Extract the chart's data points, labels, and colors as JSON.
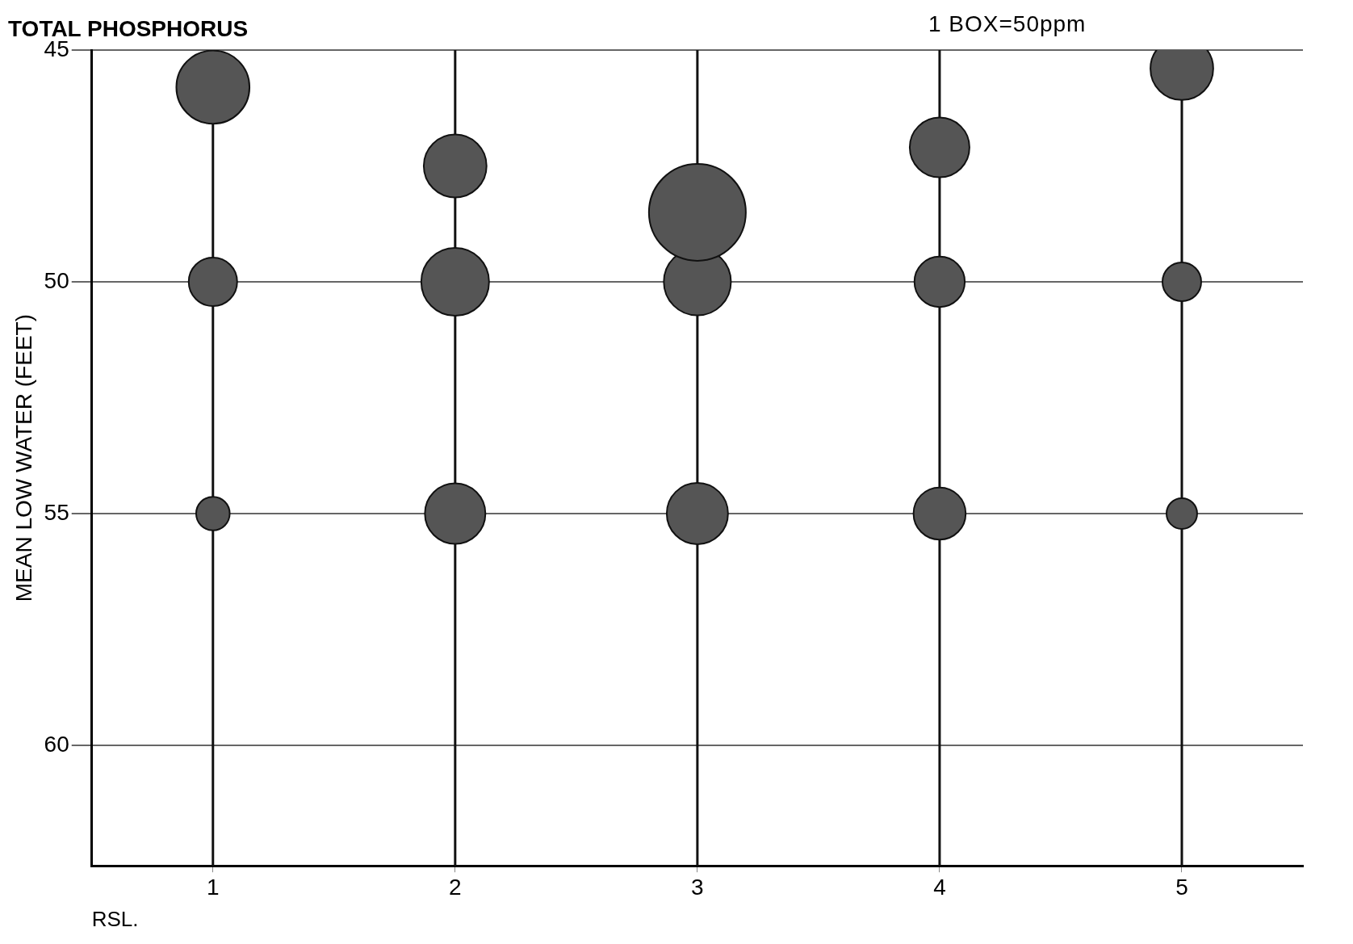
{
  "chart_data": {
    "type": "bubble",
    "title": "TOTAL PHOSPHORUS",
    "xlabel": "RSL.",
    "ylabel": "MEAN LOW WATER (FEET)",
    "annotations": [
      "1 BOX=50ppm"
    ],
    "categories": [
      "1",
      "2",
      "3",
      "4",
      "5"
    ],
    "series": [
      {
        "color": "#555555",
        "values": [
          45.8,
          47.5,
          48.5,
          47.1,
          45.4
        ],
        "sizes": [
          0.57,
          0.42,
          1,
          0.38,
          0.42
        ]
      },
      {
        "color": "#555555",
        "values": [
          50,
          50,
          50,
          50,
          50
        ],
        "sizes": [
          0.25,
          0.49,
          0.48,
          0.27,
          0.16
        ]
      },
      {
        "color": "#555555",
        "values": [
          55,
          55,
          55,
          55,
          55
        ],
        "sizes": [
          0.12,
          0.39,
          0.4,
          0.29,
          0.1
        ]
      }
    ],
    "ref_lines": [
      {
        "axis": "x",
        "value": "1",
        "color": "#111111"
      },
      {
        "axis": "x",
        "value": "2",
        "color": "#111111"
      },
      {
        "axis": "x",
        "value": "3",
        "color": "#111111"
      },
      {
        "axis": "x",
        "value": "4",
        "color": "#111111"
      },
      {
        "axis": "x",
        "value": "5",
        "color": "#111111"
      }
    ],
    "ylim": [
      62.6,
      45
    ],
    "yticks": [
      45,
      50,
      55,
      60
    ],
    "grid": true,
    "legend": false
  }
}
